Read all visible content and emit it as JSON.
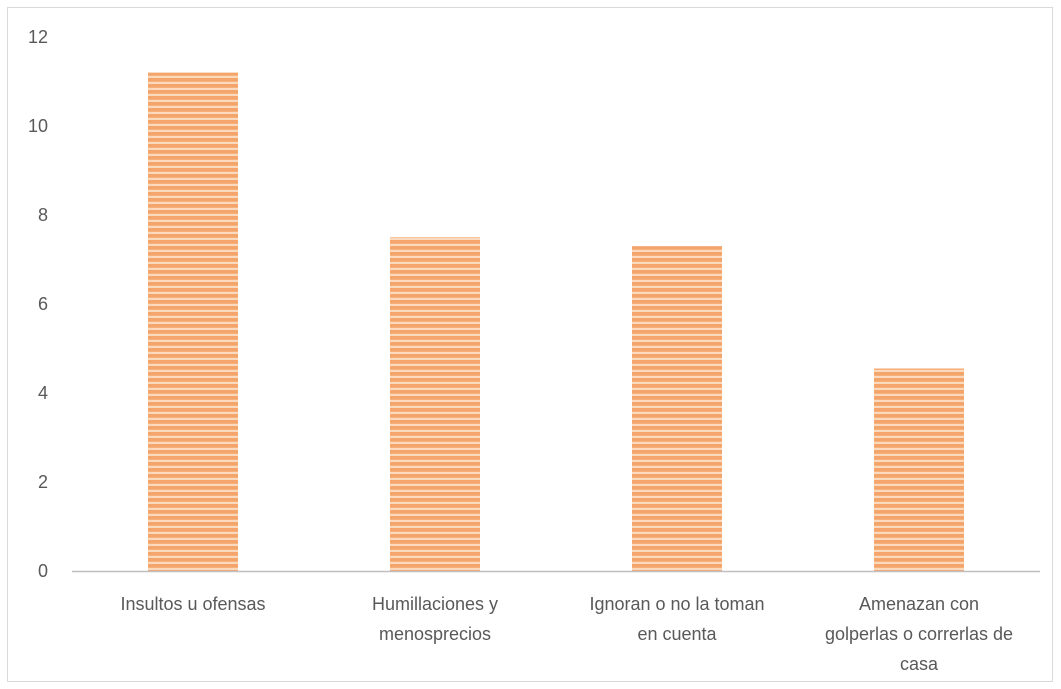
{
  "chart_data": {
    "type": "bar",
    "categories": [
      [
        "Insultos u ofensas"
      ],
      [
        "Humillaciones y",
        "menosprecios"
      ],
      [
        "Ignoran o no la toman",
        "en cuenta"
      ],
      [
        "Amenazan con",
        "golperlas o correrlas de",
        "casa"
      ]
    ],
    "values": [
      11.2,
      7.5,
      7.3,
      4.55
    ],
    "ylim": [
      0,
      12
    ],
    "yticks": [
      "0",
      "2",
      "4",
      "6",
      "8",
      "10",
      "12"
    ],
    "grid": false,
    "legend": "none",
    "bar_color": "#f4a56c",
    "bar_stripe_color": "#fbd9bd",
    "axis_color": "#bfbfbf"
  }
}
